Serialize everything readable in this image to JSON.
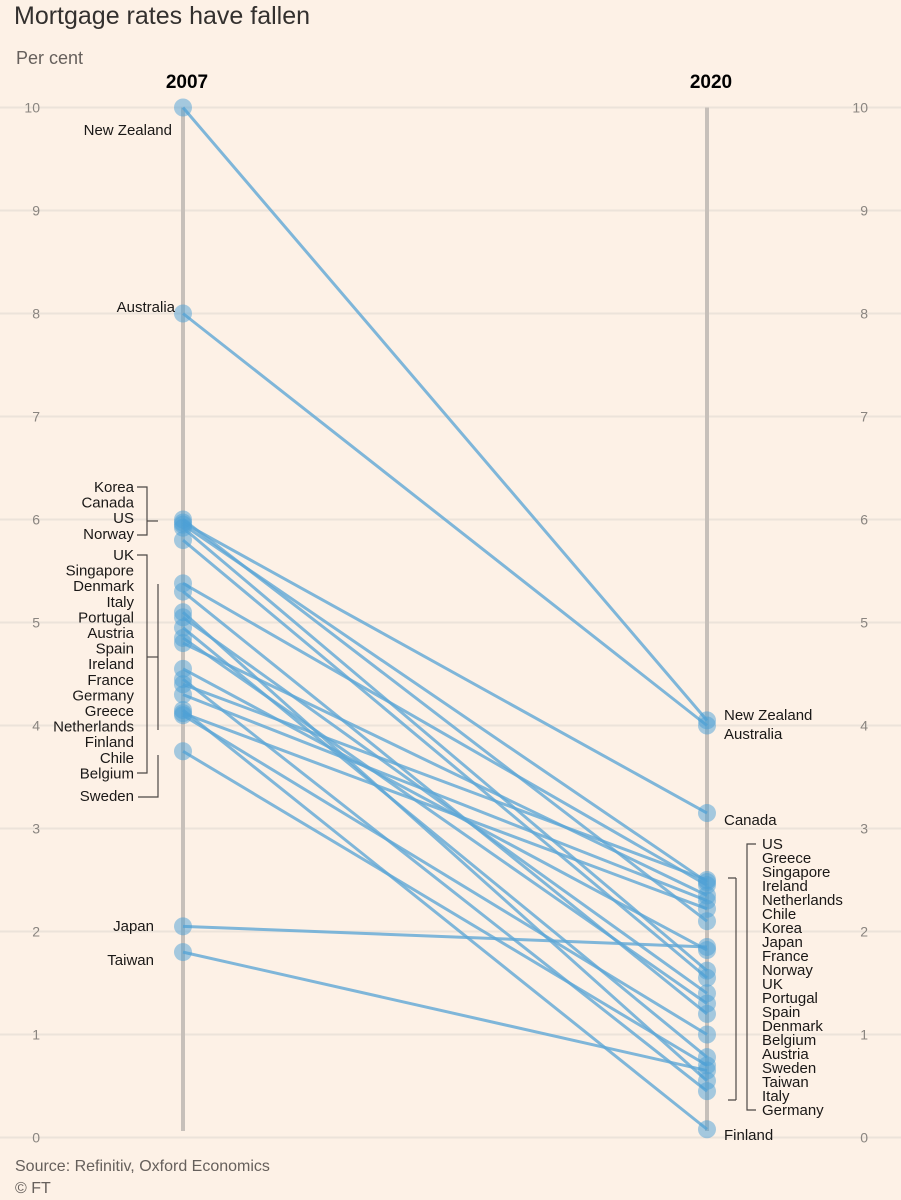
{
  "title": "Mortgage rates have fallen",
  "subtitle": "Per cent",
  "source": "Source: Refinitiv, Oxford Economics",
  "credit": "© FT",
  "colors": {
    "background": "#fdf1e6",
    "line": "#5fa7d6",
    "dot": "#4b9fd5",
    "axis": "#c7c0ba",
    "grid": "#ece3da"
  },
  "chart_data": {
    "type": "slope",
    "x": [
      "2007",
      "2020"
    ],
    "ylim": [
      0,
      10
    ],
    "yticks": [
      0,
      1,
      2,
      3,
      4,
      5,
      6,
      7,
      8,
      9,
      10
    ],
    "series": [
      {
        "name": "New Zealand",
        "values": [
          10.0,
          4.05
        ]
      },
      {
        "name": "Australia",
        "values": [
          8.0,
          4.0
        ]
      },
      {
        "name": "Korea",
        "values": [
          6.0,
          2.1
        ]
      },
      {
        "name": "Canada",
        "values": [
          5.97,
          3.15
        ]
      },
      {
        "name": "US",
        "values": [
          5.95,
          2.48
        ]
      },
      {
        "name": "Norway",
        "values": [
          5.92,
          1.62
        ]
      },
      {
        "name": "UK",
        "values": [
          5.8,
          1.55
        ]
      },
      {
        "name": "Singapore",
        "values": [
          5.38,
          2.45
        ]
      },
      {
        "name": "Denmark",
        "values": [
          5.3,
          1.2
        ]
      },
      {
        "name": "Italy",
        "values": [
          5.1,
          0.55
        ]
      },
      {
        "name": "Portugal",
        "values": [
          5.05,
          1.4
        ]
      },
      {
        "name": "Austria",
        "values": [
          4.95,
          0.78
        ]
      },
      {
        "name": "Spain",
        "values": [
          4.85,
          1.3
        ]
      },
      {
        "name": "Ireland",
        "values": [
          4.8,
          2.35
        ]
      },
      {
        "name": "France",
        "values": [
          4.55,
          1.82
        ]
      },
      {
        "name": "Germany",
        "values": [
          4.45,
          0.45
        ]
      },
      {
        "name": "Greece",
        "values": [
          4.4,
          2.5
        ]
      },
      {
        "name": "Netherlands",
        "values": [
          4.3,
          2.3
        ]
      },
      {
        "name": "Finland",
        "values": [
          4.15,
          0.08
        ]
      },
      {
        "name": "Chile",
        "values": [
          4.12,
          2.22
        ]
      },
      {
        "name": "Belgium",
        "values": [
          4.1,
          1.0
        ]
      },
      {
        "name": "Sweden",
        "values": [
          3.75,
          0.7
        ]
      },
      {
        "name": "Japan",
        "values": [
          2.05,
          1.85
        ]
      },
      {
        "name": "Taiwan",
        "values": [
          1.8,
          0.65
        ]
      }
    ],
    "labels_2007": {
      "single": [
        "New Zealand",
        "Australia",
        "Sweden",
        "Japan",
        "Taiwan"
      ],
      "group_a": [
        "Korea",
        "Canada",
        "US",
        "Norway"
      ],
      "group_b": [
        "UK",
        "Singapore",
        "Denmark",
        "Italy",
        "Portugal",
        "Austria",
        "Spain",
        "Ireland",
        "France",
        "Germany",
        "Greece",
        "Netherlands",
        "Finland",
        "Chile",
        "Belgium"
      ]
    },
    "labels_2020": {
      "single": [
        "New Zealand",
        "Australia",
        "Canada",
        "Finland"
      ],
      "group": [
        "US",
        "Greece",
        "Singapore",
        "Ireland",
        "Netherlands",
        "Chile",
        "Korea",
        "Japan",
        "France",
        "Norway",
        "UK",
        "Portugal",
        "Spain",
        "Denmark",
        "Belgium",
        "Austria",
        "Sweden",
        "Taiwan",
        "Italy",
        "Germany"
      ]
    }
  }
}
